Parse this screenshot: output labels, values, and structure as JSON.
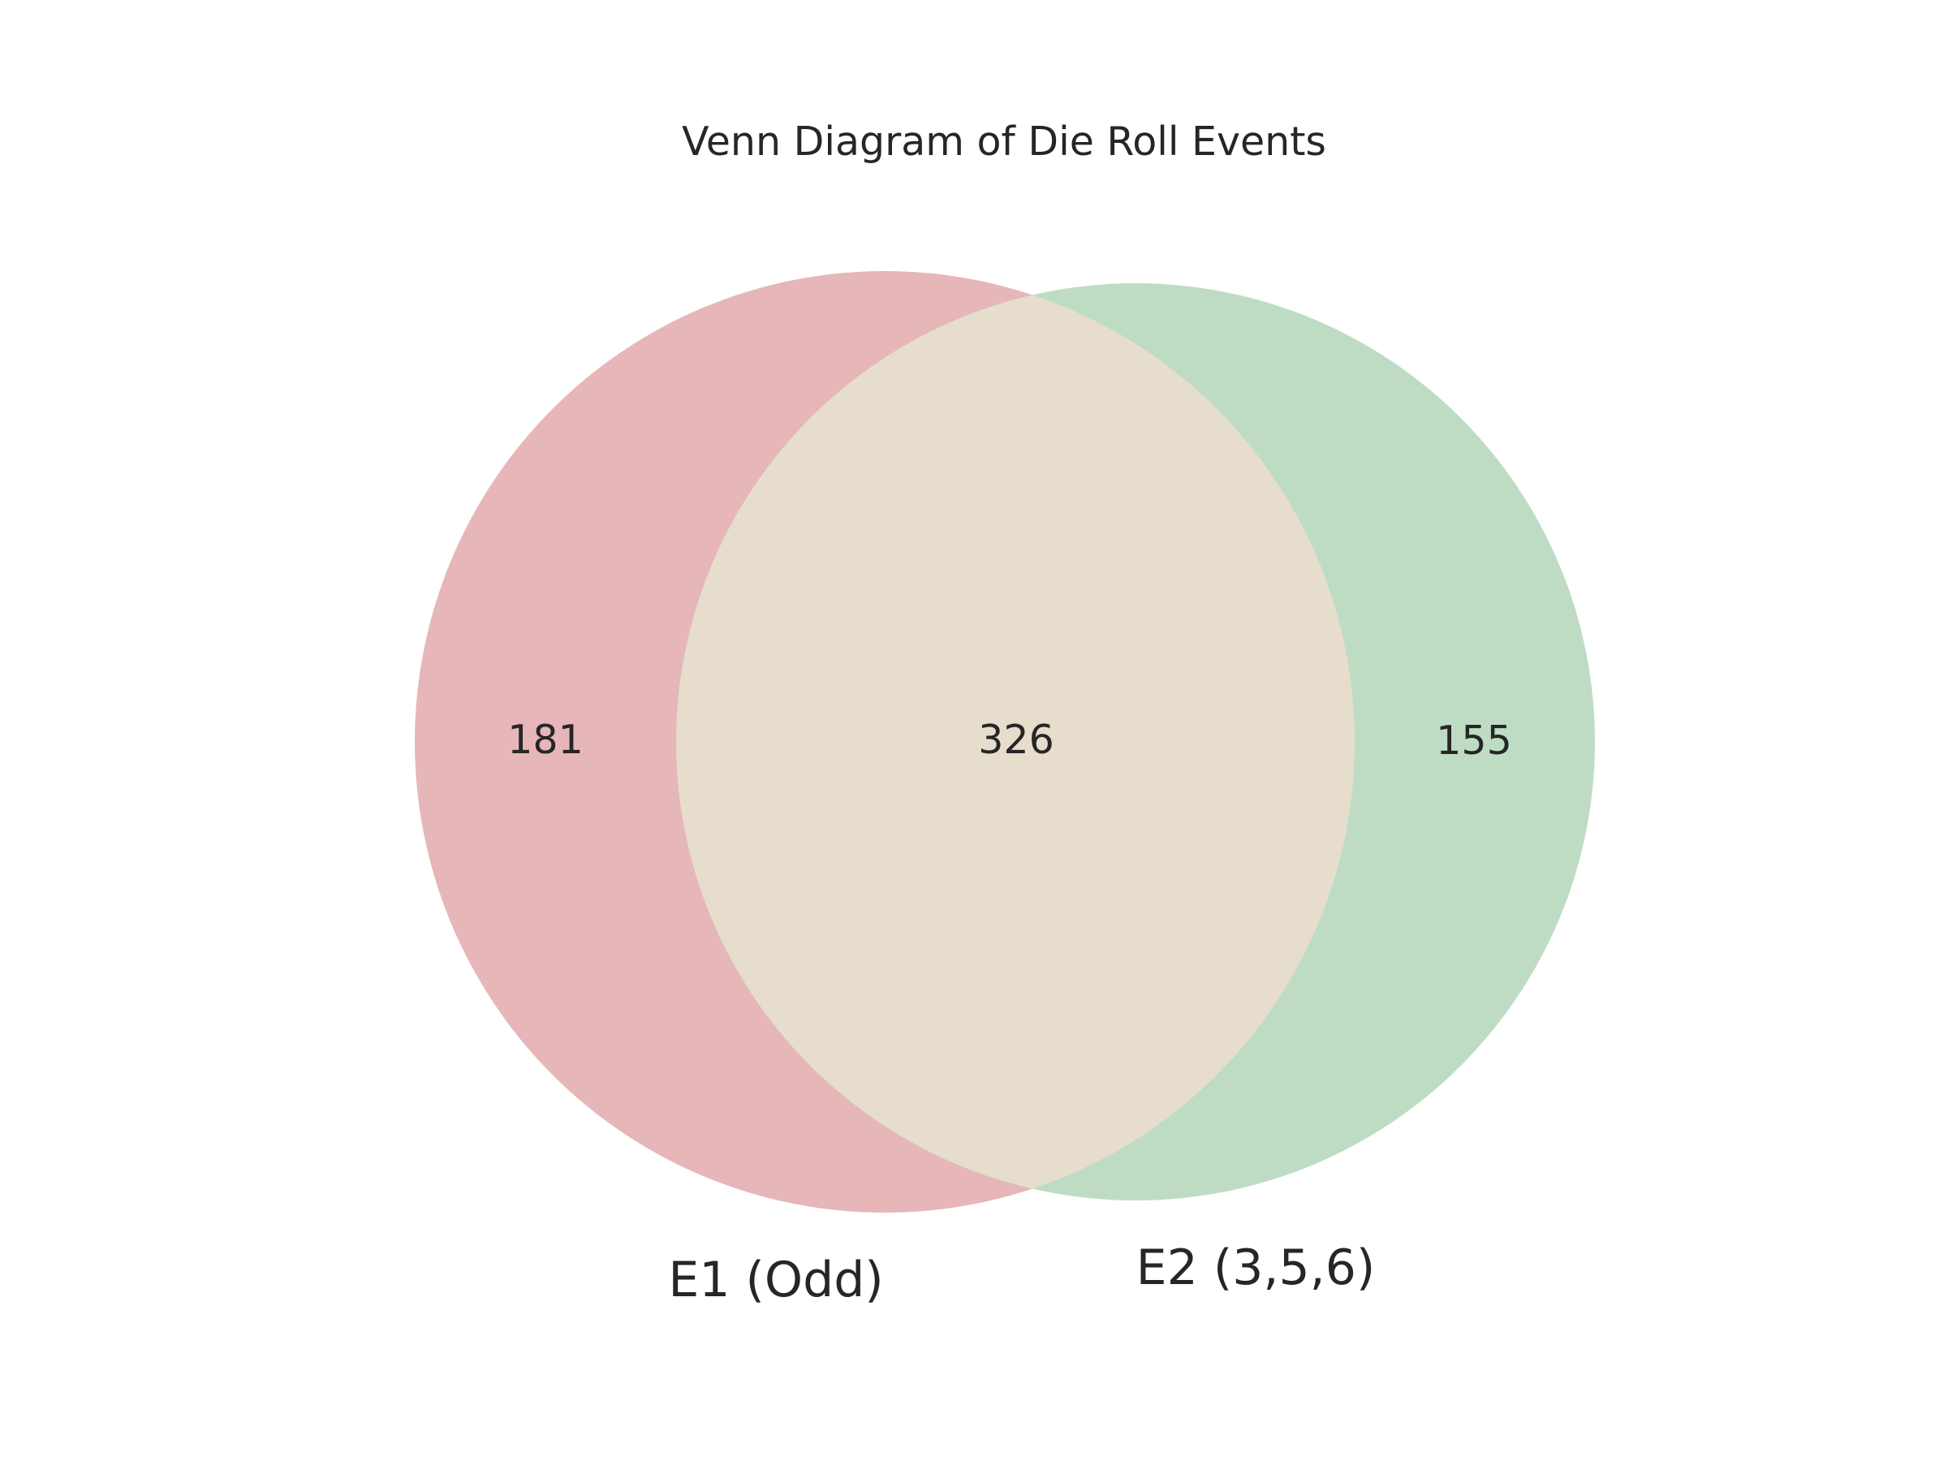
{
  "title": "Venn Diagram of Die Roll Events",
  "sets": [
    {
      "label": "E1 (Odd)",
      "color": "#e6b6b9"
    },
    {
      "label": "E2 (3,5,6)",
      "color": "#bedcc4"
    }
  ],
  "regions": {
    "only_e1": "181",
    "both": "326",
    "only_e2": "155"
  },
  "overlap_color": "#e6ddcc"
}
